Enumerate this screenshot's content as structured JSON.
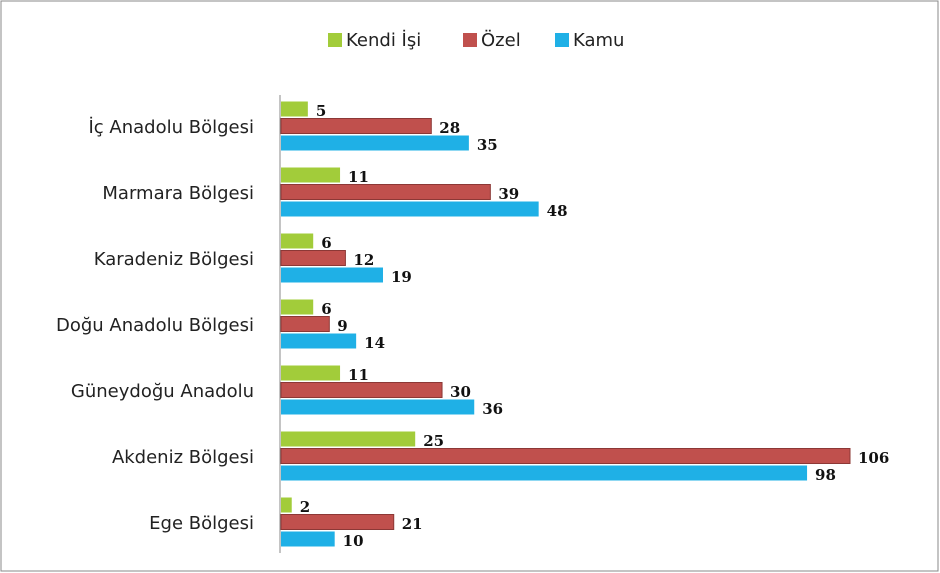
{
  "chart_data": {
    "type": "bar",
    "orientation": "horizontal",
    "categories": [
      "İç Anadolu Bölgesi",
      "Marmara Bölgesi",
      "Karadeniz Bölgesi",
      "Doğu Anadolu Bölgesi",
      "Güneydoğu Anadolu",
      "Akdeniz Bölgesi",
      "Ege Bölgesi"
    ],
    "series": [
      {
        "name": "Kendi İşi",
        "color": "#a2cc3a",
        "values": [
          5,
          11,
          6,
          6,
          11,
          25,
          2
        ]
      },
      {
        "name": "Özel",
        "color": "#c0504d",
        "values": [
          28,
          39,
          12,
          9,
          30,
          106,
          21
        ]
      },
      {
        "name": "Kamu",
        "color": "#1fb0e6",
        "values": [
          35,
          48,
          19,
          14,
          36,
          98,
          10
        ]
      }
    ],
    "legend": "top"
  }
}
